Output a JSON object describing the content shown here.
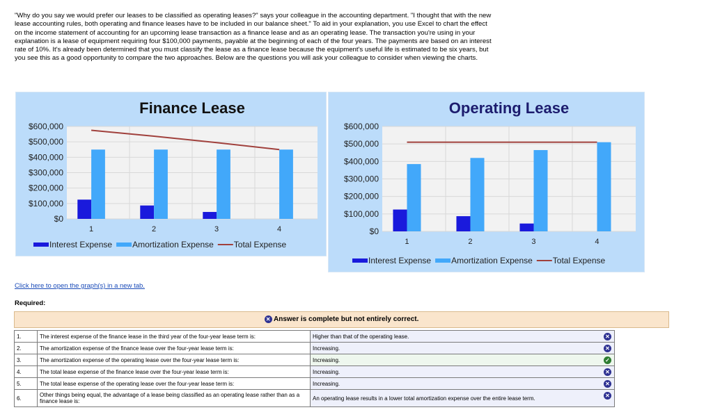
{
  "intro": "\"Why do you say we would prefer our leases to be classified as operating leases?\" says your colleague in the accounting department. \"I thought that with the new lease accounting rules, both operating and finance leases have to be included in our balance sheet.\" To aid in your explanation, you use Excel to chart the effect on the income statement of accounting for an upcoming lease transaction as a finance lease and as an operating lease. The transaction you're using in your explanation is a lease of equipment requiring four $100,000 payments, payable at the beginning of each of the four years. The payments are based on an interest rate of 10%. It's already been determined that you must classify the lease as a finance lease because the equipment's useful life is estimated to be six years, but you see this as a good opportunity to compare the two approaches. Below are the questions you will ask your colleague to consider when viewing the charts.",
  "link": "Click here to open the graph(s) in a new tab.",
  "required": "Required:",
  "banner": "Answer is complete but not entirely correct.",
  "colors": {
    "interest": "#1a1adc",
    "amortization": "#42a8fa",
    "total": "#a0403c",
    "chart_bg": "#bcdcfa",
    "plot_bg": "#f2f2f2"
  },
  "chart_data": [
    {
      "type": "bar+line",
      "title": "Finance Lease",
      "title_color": "#111111",
      "categories": [
        "1",
        "2",
        "3",
        "4"
      ],
      "ylim": [
        0,
        600000
      ],
      "yticks": [
        "$0",
        "$100,000",
        "$200,000",
        "$300,000",
        "$400,000",
        "$500,000",
        "$600,000"
      ],
      "legend": "bottom",
      "grid": true,
      "series": [
        {
          "name": "Interest Expense",
          "kind": "bar",
          "values": [
            125000,
            87000,
            45000,
            0
          ]
        },
        {
          "name": "Amortization Expense",
          "kind": "bar",
          "values": [
            450000,
            450000,
            450000,
            450000
          ]
        },
        {
          "name": "Total Expense",
          "kind": "line",
          "values": [
            575000,
            537000,
            495000,
            450000
          ]
        }
      ]
    },
    {
      "type": "bar+line",
      "title": "Operating Lease",
      "title_color": "#1c1c6e",
      "categories": [
        "1",
        "2",
        "3",
        "4"
      ],
      "ylim": [
        0,
        600000
      ],
      "yticks": [
        "$0",
        "$100,000",
        "$200,000",
        "$300,000",
        "$400,000",
        "$500,000",
        "$600,000"
      ],
      "legend": "bottom",
      "grid": true,
      "series": [
        {
          "name": "Interest Expense",
          "kind": "bar",
          "values": [
            125000,
            87000,
            45000,
            0
          ]
        },
        {
          "name": "Amortization Expense",
          "kind": "bar",
          "values": [
            385000,
            420000,
            465000,
            510000
          ]
        },
        {
          "name": "Total Expense",
          "kind": "line",
          "values": [
            510000,
            510000,
            510000,
            510000
          ]
        }
      ]
    }
  ],
  "rows": [
    {
      "num": "1.",
      "question": "The interest expense of the finance lease in the third year of the four-year lease term is:",
      "answer": "Higher than that of the operating lease.",
      "status": "incorrect"
    },
    {
      "num": "2.",
      "question": "The amortization expense of the finance lease over the four-year lease term is:",
      "answer": "Increasing.",
      "status": "incorrect"
    },
    {
      "num": "3.",
      "question": "The amortization expense of the operating lease over the four-year lease term is:",
      "answer": "Increasing.",
      "status": "correct"
    },
    {
      "num": "4.",
      "question": "The total lease expense of the finance lease over the four-year lease term is:",
      "answer": "Increasing.",
      "status": "incorrect"
    },
    {
      "num": "5.",
      "question": "The total lease expense of the operating lease over the four-year lease term is:",
      "answer": "Increasing.",
      "status": "incorrect"
    },
    {
      "num": "6.",
      "question": "Other things being equal, the advantage of a lease being classified as an operating lease rather than as a finance lease is:",
      "answer": "An operating lease results in a lower total amortization expense over the entire lease term.",
      "status": "incorrect"
    }
  ]
}
